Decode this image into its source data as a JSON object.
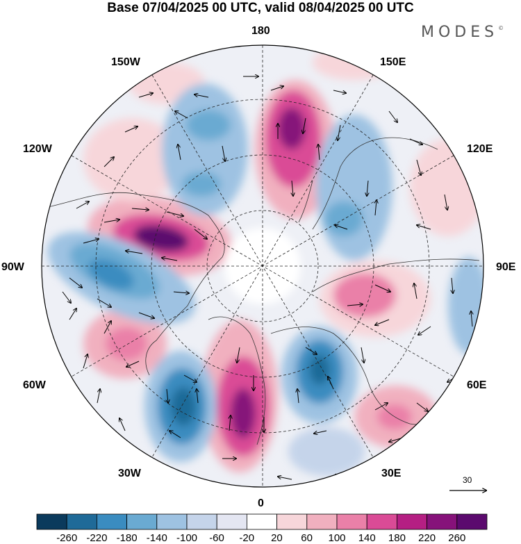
{
  "title": "Base 07/04/2025 00 UTC, valid 08/04/2025 00 UTC",
  "brand": "MODES",
  "brand_mark": "©",
  "longitude_labels": {
    "n180": "180",
    "w150": "150W",
    "e150": "150E",
    "w120": "120W",
    "e120": "120E",
    "w90": "90W",
    "e90": "90E",
    "w60": "60W",
    "e60": "60E",
    "w30": "30W",
    "e30": "30E",
    "n0": "0"
  },
  "wind_reference": {
    "value": "30"
  },
  "colorbar": {
    "colors": [
      "#0b3a5c",
      "#1f6a98",
      "#3a8cc0",
      "#6aaad2",
      "#9ec2e2",
      "#c5d4ea",
      "#e4e6f2",
      "#ffffff",
      "#f7d6da",
      "#f1b0bf",
      "#ea80a8",
      "#da4b96",
      "#b51f83",
      "#86127a",
      "#5b0a6e"
    ],
    "tick_labels": [
      "-260",
      "-220",
      "-180",
      "-140",
      "-100",
      "-60",
      "-20",
      "20",
      "60",
      "100",
      "140",
      "180",
      "220",
      "260"
    ]
  }
}
